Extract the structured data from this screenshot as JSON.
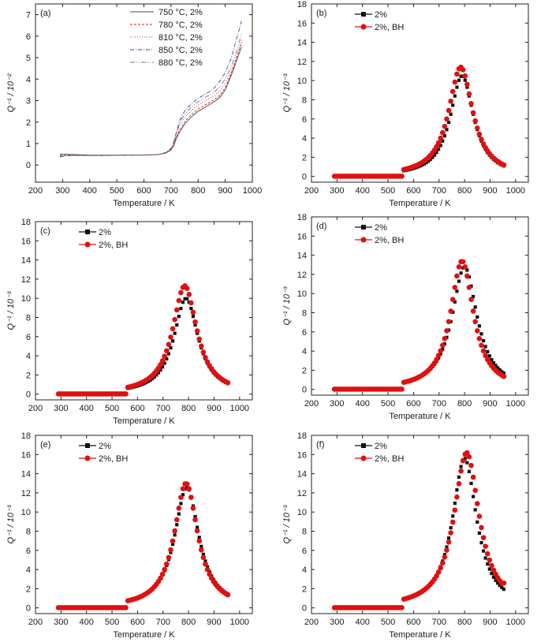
{
  "chart_data": [
    {
      "panel": "(a)",
      "type": "line",
      "xlabel": "Temperature / K",
      "ylabel": "Q⁻¹ / 10⁻²",
      "xlim": [
        200,
        1000
      ],
      "ylim": [
        -0.8,
        7.5
      ],
      "xticks": [
        200,
        300,
        400,
        500,
        600,
        700,
        800,
        900,
        1000
      ],
      "yticks": [
        0,
        1,
        2,
        3,
        4,
        5,
        6,
        7
      ],
      "legend": "top-right",
      "series": [
        {
          "name": "750 °C, 2%",
          "color": "#444444",
          "dash": "",
          "x": [
            290,
            320,
            350,
            400,
            450,
            500,
            550,
            600,
            650,
            680,
            700,
            705,
            710,
            720,
            730,
            740,
            750,
            760,
            780,
            800,
            820,
            840,
            860,
            880,
            900,
            920,
            940,
            960
          ],
          "y": [
            0.5,
            0.5,
            0.48,
            0.46,
            0.46,
            0.46,
            0.47,
            0.47,
            0.48,
            0.55,
            0.7,
            0.8,
            0.9,
            1.25,
            1.5,
            1.7,
            1.9,
            2.05,
            2.3,
            2.5,
            2.65,
            2.8,
            2.95,
            3.15,
            3.5,
            4.1,
            4.8,
            5.5
          ]
        },
        {
          "name": "780 °C, 2%",
          "color": "#cc2222",
          "dash": "3,2",
          "x": [
            290,
            320,
            350,
            400,
            450,
            500,
            550,
            600,
            650,
            680,
            700,
            705,
            710,
            720,
            730,
            740,
            750,
            760,
            780,
            800,
            820,
            840,
            860,
            880,
            900,
            920,
            940,
            960
          ],
          "y": [
            0.45,
            0.46,
            0.46,
            0.45,
            0.45,
            0.46,
            0.46,
            0.47,
            0.48,
            0.56,
            0.72,
            0.82,
            0.95,
            1.3,
            1.6,
            1.8,
            2.0,
            2.15,
            2.4,
            2.6,
            2.75,
            2.9,
            3.05,
            3.25,
            3.6,
            4.2,
            4.9,
            5.7
          ]
        },
        {
          "name": "810 °C, 2%",
          "color": "#cc3355",
          "dash": "1,2",
          "x": [
            290,
            320,
            350,
            400,
            450,
            500,
            550,
            600,
            650,
            680,
            700,
            705,
            710,
            720,
            730,
            740,
            750,
            760,
            780,
            800,
            820,
            840,
            860,
            880,
            900,
            920,
            940,
            960
          ],
          "y": [
            0.42,
            0.45,
            0.45,
            0.44,
            0.44,
            0.45,
            0.46,
            0.46,
            0.48,
            0.57,
            0.75,
            0.85,
            1.0,
            1.4,
            1.8,
            2.0,
            2.2,
            2.35,
            2.6,
            2.8,
            2.95,
            3.1,
            3.25,
            3.45,
            3.8,
            4.3,
            5.0,
            5.8
          ]
        },
        {
          "name": "850 °C, 2%",
          "color": "#3344bb",
          "dash": "5,2,1,2",
          "x": [
            290,
            320,
            350,
            400,
            450,
            500,
            550,
            600,
            650,
            680,
            700,
            705,
            710,
            720,
            730,
            740,
            750,
            760,
            780,
            800,
            820,
            840,
            860,
            880,
            900,
            920,
            940,
            960
          ],
          "y": [
            0.38,
            0.43,
            0.44,
            0.44,
            0.44,
            0.45,
            0.46,
            0.46,
            0.48,
            0.58,
            0.78,
            0.9,
            1.1,
            1.55,
            2.0,
            2.3,
            2.5,
            2.65,
            2.9,
            3.1,
            3.25,
            3.4,
            3.6,
            3.9,
            4.3,
            4.9,
            5.8,
            6.7
          ]
        },
        {
          "name": "880 °C, 2%",
          "color": "#777777",
          "dash": "6,2,1,2,1,2",
          "x": [
            290,
            320,
            350,
            400,
            450,
            500,
            550,
            600,
            650,
            680,
            700,
            705,
            710,
            720,
            730,
            740,
            750,
            760,
            780,
            800,
            820,
            840,
            860,
            880,
            900,
            920,
            940,
            960
          ],
          "y": [
            0.4,
            0.44,
            0.44,
            0.44,
            0.44,
            0.45,
            0.46,
            0.46,
            0.48,
            0.57,
            0.76,
            0.87,
            1.05,
            1.45,
            1.9,
            2.15,
            2.35,
            2.5,
            2.75,
            2.95,
            3.1,
            3.25,
            3.4,
            3.65,
            4.0,
            4.5,
            5.2,
            6.1
          ]
        }
      ]
    },
    {
      "panel": "(b)",
      "type": "scatter",
      "xlabel": "Temperature / K",
      "ylabel": "Q⁻¹ / 10⁻³",
      "xlim": [
        200,
        1050
      ],
      "ylim": [
        -0.6,
        18
      ],
      "xticks": [
        200,
        300,
        400,
        500,
        600,
        700,
        800,
        900,
        1000
      ],
      "yticks": [
        0,
        2,
        4,
        6,
        8,
        10,
        12,
        14,
        16,
        18
      ],
      "legend": "top-left",
      "peak": {
        "black": {
          "amp": 10.5,
          "center": 790,
          "width": 56
        },
        "red": {
          "amp": 11.4,
          "center": 785,
          "width": 58
        }
      },
      "tail_end": {
        "black": 0.9,
        "red": 0.9
      },
      "series": [
        {
          "name": "2%",
          "color": "#111111",
          "marker": "square"
        },
        {
          "name": "2%, BH",
          "color": "#e01010",
          "marker": "circle"
        }
      ]
    },
    {
      "panel": "(c)",
      "type": "scatter",
      "xlabel": "Temperature / K",
      "ylabel": "Q⁻¹ / 10⁻³",
      "xlim": [
        200,
        1050
      ],
      "ylim": [
        -0.6,
        18
      ],
      "xticks": [
        200,
        300,
        400,
        500,
        600,
        700,
        800,
        900,
        1000
      ],
      "yticks": [
        0,
        2,
        4,
        6,
        8,
        10,
        12,
        14,
        16,
        18
      ],
      "legend": "top-left",
      "peak": {
        "black": {
          "amp": 10.0,
          "center": 790,
          "width": 58
        },
        "red": {
          "amp": 11.3,
          "center": 785,
          "width": 58
        }
      },
      "tail_end": {
        "black": 1.1,
        "red": 0.9
      },
      "series": [
        {
          "name": "2%",
          "color": "#111111",
          "marker": "square"
        },
        {
          "name": "2%, BH",
          "color": "#e01010",
          "marker": "circle"
        }
      ]
    },
    {
      "panel": "(d)",
      "type": "scatter",
      "xlabel": "Temperature / K",
      "ylabel": "Q⁻¹ / 10⁻³",
      "xlim": [
        200,
        1050
      ],
      "ylim": [
        -0.6,
        18
      ],
      "xticks": [
        200,
        300,
        400,
        500,
        600,
        700,
        800,
        900,
        1000
      ],
      "yticks": [
        0,
        2,
        4,
        6,
        8,
        10,
        12,
        14,
        16,
        18
      ],
      "legend": "top-left",
      "peak": {
        "black": {
          "amp": 12.8,
          "center": 800,
          "width": 60
        },
        "red": {
          "amp": 13.4,
          "center": 790,
          "width": 55
        }
      },
      "tail_end": {
        "black": 1.7,
        "red": 1.1
      },
      "series": [
        {
          "name": "2%",
          "color": "#111111",
          "marker": "square"
        },
        {
          "name": "2%, BH",
          "color": "#e01010",
          "marker": "circle"
        }
      ]
    },
    {
      "panel": "(e)",
      "type": "scatter",
      "xlabel": "Temperature / K",
      "ylabel": "Q⁻¹ / 10⁻³",
      "xlim": [
        200,
        1050
      ],
      "ylim": [
        -0.6,
        18
      ],
      "xticks": [
        200,
        300,
        400,
        500,
        600,
        700,
        800,
        900,
        1000
      ],
      "yticks": [
        0,
        2,
        4,
        6,
        8,
        10,
        12,
        14,
        16,
        18
      ],
      "legend": "top-left",
      "peak": {
        "black": {
          "amp": 12.6,
          "center": 793,
          "width": 58
        },
        "red": {
          "amp": 13.0,
          "center": 790,
          "width": 56
        }
      },
      "tail_end": {
        "black": 1.4,
        "red": 1.3
      },
      "series": [
        {
          "name": "2%",
          "color": "#111111",
          "marker": "square"
        },
        {
          "name": "2%, BH",
          "color": "#e01010",
          "marker": "circle"
        }
      ]
    },
    {
      "panel": "(f)",
      "type": "scatter",
      "xlabel": "Temperature / K",
      "ylabel": "Q⁻¹ / 10⁻³",
      "xlim": [
        200,
        1050
      ],
      "ylim": [
        -0.6,
        18
      ],
      "xticks": [
        200,
        300,
        400,
        500,
        600,
        700,
        800,
        900,
        1000
      ],
      "yticks": [
        0,
        2,
        4,
        6,
        8,
        10,
        12,
        14,
        16,
        18
      ],
      "legend": "top-left",
      "peak": {
        "black": {
          "amp": 15.6,
          "center": 800,
          "width": 58
        },
        "red": {
          "amp": 16.2,
          "center": 808,
          "width": 60
        }
      },
      "tail_end": {
        "black": 1.7,
        "red": 2.6
      },
      "series": [
        {
          "name": "2%",
          "color": "#111111",
          "marker": "square"
        },
        {
          "name": "2%, BH",
          "color": "#e01010",
          "marker": "circle"
        }
      ]
    }
  ]
}
